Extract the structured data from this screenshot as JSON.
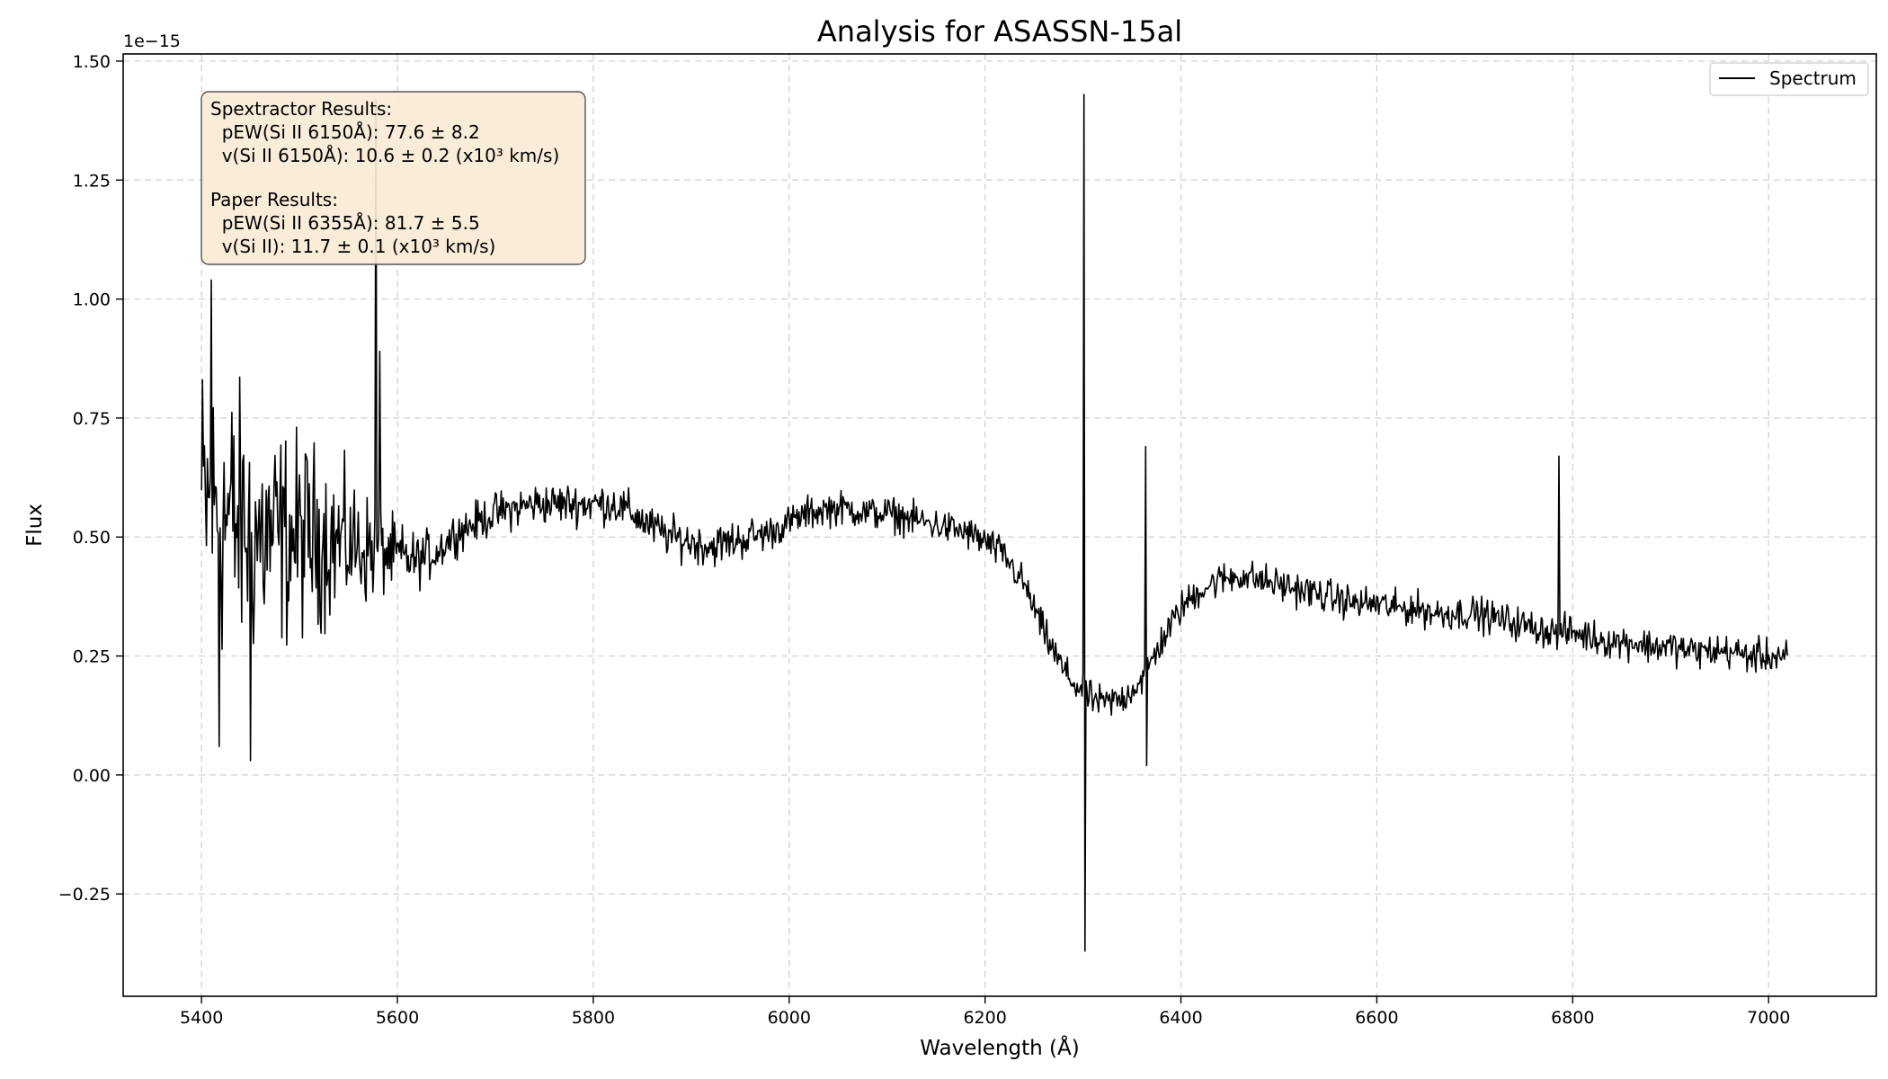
{
  "chart_data": {
    "type": "line",
    "title": "Analysis for ASASSN-15al",
    "xlabel": "Wavelength (Å)",
    "ylabel": "Flux",
    "y_offset_label": "1e−15",
    "xlim": [
      5320,
      7110
    ],
    "ylim": [
      -0.465,
      1.515
    ],
    "xticks": [
      5400,
      5600,
      5800,
      6000,
      6200,
      6400,
      6600,
      6800,
      7000
    ],
    "xtick_labels": [
      "5400",
      "5600",
      "5800",
      "6000",
      "6200",
      "6400",
      "6600",
      "6800",
      "7000"
    ],
    "yticks": [
      -0.25,
      0.0,
      0.25,
      0.5,
      0.75,
      1.0,
      1.25,
      1.5
    ],
    "ytick_labels": [
      "−0.25",
      "0.00",
      "0.25",
      "0.50",
      "0.75",
      "1.00",
      "1.25",
      "1.50"
    ],
    "grid": true,
    "legend_placement": "top-right",
    "series": [
      {
        "name": "Spectrum",
        "color": "#000000",
        "x": [
          5400,
          5420,
          5440,
          5460,
          5480,
          5500,
          5520,
          5540,
          5560,
          5580,
          5600,
          5620,
          5640,
          5660,
          5680,
          5700,
          5720,
          5740,
          5760,
          5780,
          5800,
          5820,
          5840,
          5860,
          5880,
          5900,
          5920,
          5940,
          5960,
          5980,
          6000,
          6020,
          6040,
          6060,
          6080,
          6100,
          6120,
          6140,
          6160,
          6180,
          6200,
          6220,
          6240,
          6260,
          6280,
          6300,
          6320,
          6340,
          6360,
          6380,
          6400,
          6420,
          6440,
          6460,
          6480,
          6500,
          6520,
          6540,
          6560,
          6580,
          6600,
          6620,
          6640,
          6660,
          6680,
          6700,
          6720,
          6740,
          6760,
          6780,
          6800,
          6820,
          6840,
          6860,
          6880,
          6900,
          6920,
          6940,
          6960,
          6980,
          7000,
          7020
        ],
        "y": [
          0.57,
          0.55,
          0.52,
          0.5,
          0.5,
          0.5,
          0.5,
          0.49,
          0.48,
          0.47,
          0.46,
          0.45,
          0.47,
          0.51,
          0.53,
          0.55,
          0.56,
          0.57,
          0.57,
          0.57,
          0.57,
          0.57,
          0.55,
          0.52,
          0.5,
          0.49,
          0.48,
          0.49,
          0.5,
          0.51,
          0.53,
          0.55,
          0.56,
          0.56,
          0.55,
          0.55,
          0.54,
          0.53,
          0.52,
          0.51,
          0.49,
          0.46,
          0.4,
          0.3,
          0.22,
          0.17,
          0.15,
          0.16,
          0.2,
          0.28,
          0.35,
          0.39,
          0.41,
          0.42,
          0.41,
          0.4,
          0.39,
          0.38,
          0.37,
          0.36,
          0.36,
          0.35,
          0.35,
          0.34,
          0.34,
          0.34,
          0.33,
          0.32,
          0.31,
          0.3,
          0.3,
          0.29,
          0.28,
          0.28,
          0.27,
          0.27,
          0.26,
          0.26,
          0.26,
          0.25,
          0.25,
          0.25
        ],
        "noise_amplitude": [
          0.22,
          0.22,
          0.2,
          0.18,
          0.16,
          0.15,
          0.13,
          0.11,
          0.09,
          0.07,
          0.05,
          0.04,
          0.035,
          0.03,
          0.03,
          0.03,
          0.03,
          0.03,
          0.03,
          0.03,
          0.03,
          0.03,
          0.03,
          0.03,
          0.03,
          0.03,
          0.03,
          0.03,
          0.03,
          0.025,
          0.025,
          0.025,
          0.025,
          0.025,
          0.025,
          0.025,
          0.025,
          0.025,
          0.025,
          0.025,
          0.025,
          0.025,
          0.025,
          0.025,
          0.025,
          0.025,
          0.025,
          0.025,
          0.025,
          0.025,
          0.025,
          0.025,
          0.025,
          0.025,
          0.025,
          0.025,
          0.025,
          0.025,
          0.025,
          0.025,
          0.025,
          0.025,
          0.025,
          0.025,
          0.025,
          0.025,
          0.025,
          0.025,
          0.025,
          0.025,
          0.025,
          0.025,
          0.025,
          0.025,
          0.025,
          0.025,
          0.025,
          0.025,
          0.025,
          0.025,
          0.025,
          0.025
        ],
        "spikes": [
          {
            "x": 5410,
            "y": 1.04
          },
          {
            "x": 5418,
            "y": 0.06
          },
          {
            "x": 5450,
            "y": 0.03
          },
          {
            "x": 5578,
            "y": 1.42
          },
          {
            "x": 5582,
            "y": 0.89
          },
          {
            "x": 6301,
            "y": 1.43
          },
          {
            "x": 6302,
            "y": -0.37
          },
          {
            "x": 6364,
            "y": 0.69
          },
          {
            "x": 6365,
            "y": 0.02
          },
          {
            "x": 6786,
            "y": 0.67
          }
        ]
      }
    ]
  },
  "annotation": {
    "lines": [
      "Spextractor Results:",
      "  pEW(Si II 6150Å): 77.6 ± 8.2",
      "  v(Si II 6150Å): 10.6 ± 0.2 (x10³ km/s)",
      "",
      "Paper Results:",
      "  pEW(Si II 6355Å): 81.7 ± 5.5",
      "  v(Si II): 11.7 ± 0.1 (x10³ km/s)"
    ],
    "box_color": "#f8ecd6"
  }
}
